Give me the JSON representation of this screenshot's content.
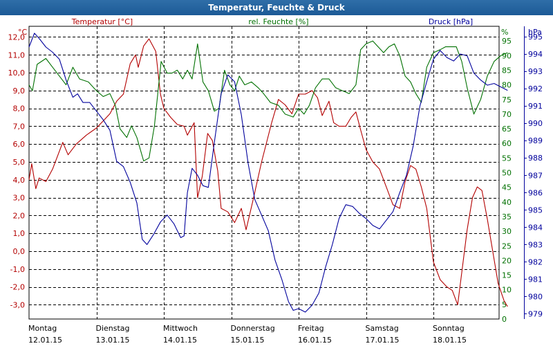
{
  "window": {
    "title": "Temperatur, Feuchte & Druck"
  },
  "chart_data": {
    "type": "line",
    "title": "Temperatur, Feuchte & Druck",
    "x_days": [
      {
        "day": "Montag",
        "date": "12.01.15"
      },
      {
        "day": "Dienstag",
        "date": "13.01.15"
      },
      {
        "day": "Mittwoch",
        "date": "14.01.15"
      },
      {
        "day": "Donnerstag",
        "date": "15.01.15"
      },
      {
        "day": "Freitag",
        "date": "16.01.15"
      },
      {
        "day": "Samstag",
        "date": "17.01.15"
      },
      {
        "day": "Sonntag",
        "date": "18.01.15"
      }
    ],
    "x_range_days": [
      0,
      7
    ],
    "grid": true,
    "axes": {
      "temperature": {
        "label": "Temperatur [°C]",
        "unit": "°C",
        "color": "#b30000",
        "ylim": [
          -3.8,
          12.6
        ],
        "ticks": [
          "12,0",
          "11,0",
          "10,0",
          "9,0",
          "8,0",
          "7,0",
          "6,0",
          "5,0",
          "4,0",
          "3,0",
          "2,0",
          "1,0",
          "0,0",
          "-1,0",
          "-2,0",
          "-3,0"
        ]
      },
      "humidity": {
        "label": "rel. Feuchte [%]",
        "unit": "%",
        "color": "#007000",
        "ylim": [
          0,
          100
        ],
        "ticks": [
          "0",
          "5",
          "10",
          "15",
          "20",
          "25",
          "30",
          "35",
          "40",
          "45",
          "50",
          "55",
          "60",
          "65",
          "70",
          "75",
          "80",
          "85",
          "90",
          "95"
        ]
      },
      "pressure": {
        "label": "Druck [hPa]",
        "unit": "hPa",
        "color": "#00009c",
        "ylim": [
          978.7,
          995.6
        ],
        "ticks": [
          "979",
          "980",
          "981",
          "982",
          "983",
          "984",
          "985",
          "986",
          "987",
          "988",
          "989",
          "990",
          "991",
          "992",
          "993",
          "994",
          "995"
        ]
      }
    },
    "series": [
      {
        "name": "Temperatur",
        "axis": "temperature",
        "color": "#b30000",
        "points": [
          [
            0,
            4
          ],
          [
            0.04,
            4.9
          ],
          [
            0.1,
            3.5
          ],
          [
            0.15,
            4.1
          ],
          [
            0.25,
            3.9
          ],
          [
            0.35,
            4.6
          ],
          [
            0.5,
            6.1
          ],
          [
            0.58,
            5.4
          ],
          [
            0.7,
            6.0
          ],
          [
            0.85,
            6.5
          ],
          [
            1.0,
            6.9
          ],
          [
            1.1,
            7.3
          ],
          [
            1.2,
            7.7
          ],
          [
            1.3,
            8.4
          ],
          [
            1.4,
            8.8
          ],
          [
            1.5,
            10.5
          ],
          [
            1.58,
            11.0
          ],
          [
            1.62,
            10.3
          ],
          [
            1.7,
            11.5
          ],
          [
            1.78,
            11.9
          ],
          [
            1.88,
            11.2
          ],
          [
            1.95,
            8.8
          ],
          [
            2.0,
            8.0
          ],
          [
            2.1,
            7.5
          ],
          [
            2.2,
            7.1
          ],
          [
            2.3,
            7.0
          ],
          [
            2.35,
            6.5
          ],
          [
            2.45,
            7.2
          ],
          [
            2.5,
            3.0
          ],
          [
            2.57,
            4.2
          ],
          [
            2.65,
            6.6
          ],
          [
            2.72,
            6.2
          ],
          [
            2.8,
            4.5
          ],
          [
            2.85,
            2.4
          ],
          [
            2.95,
            2.2
          ],
          [
            3.05,
            1.6
          ],
          [
            3.15,
            2.4
          ],
          [
            3.22,
            1.2
          ],
          [
            3.32,
            2.8
          ],
          [
            3.45,
            5.0
          ],
          [
            3.6,
            7.2
          ],
          [
            3.7,
            8.5
          ],
          [
            3.8,
            8.2
          ],
          [
            3.9,
            7.7
          ],
          [
            4.0,
            8.8
          ],
          [
            4.1,
            8.8
          ],
          [
            4.2,
            9.0
          ],
          [
            4.28,
            8.6
          ],
          [
            4.35,
            7.6
          ],
          [
            4.45,
            8.4
          ],
          [
            4.52,
            7.2
          ],
          [
            4.6,
            7.0
          ],
          [
            4.7,
            7.0
          ],
          [
            4.78,
            7.5
          ],
          [
            4.85,
            7.8
          ],
          [
            4.92,
            6.8
          ],
          [
            5.0,
            5.7
          ],
          [
            5.1,
            5.0
          ],
          [
            5.2,
            4.6
          ],
          [
            5.3,
            3.6
          ],
          [
            5.4,
            2.6
          ],
          [
            5.5,
            2.4
          ],
          [
            5.58,
            3.9
          ],
          [
            5.66,
            4.8
          ],
          [
            5.74,
            4.6
          ],
          [
            5.82,
            3.6
          ],
          [
            5.9,
            2.4
          ],
          [
            6.0,
            -0.6
          ],
          [
            6.1,
            -1.6
          ],
          [
            6.2,
            -2.0
          ],
          [
            6.28,
            -2.2
          ],
          [
            6.36,
            -3.0
          ],
          [
            6.42,
            -1.2
          ],
          [
            6.5,
            1.2
          ],
          [
            6.58,
            3.0
          ],
          [
            6.65,
            3.6
          ],
          [
            6.72,
            3.4
          ],
          [
            6.8,
            1.8
          ],
          [
            6.88,
            0
          ],
          [
            6.96,
            -1.8
          ],
          [
            7.05,
            -2.8
          ],
          [
            7.1,
            -3.1
          ]
        ]
      },
      {
        "name": "rel. Feuchte",
        "axis": "humidity",
        "color": "#007000",
        "points": [
          [
            0,
            80
          ],
          [
            0.05,
            78
          ],
          [
            0.12,
            87
          ],
          [
            0.25,
            89
          ],
          [
            0.35,
            86
          ],
          [
            0.45,
            83
          ],
          [
            0.55,
            80
          ],
          [
            0.65,
            86
          ],
          [
            0.75,
            82
          ],
          [
            0.88,
            81
          ],
          [
            1.0,
            78
          ],
          [
            1.1,
            76
          ],
          [
            1.2,
            77
          ],
          [
            1.28,
            73
          ],
          [
            1.35,
            65
          ],
          [
            1.45,
            62
          ],
          [
            1.52,
            66
          ],
          [
            1.6,
            62
          ],
          [
            1.7,
            54
          ],
          [
            1.78,
            55
          ],
          [
            1.86,
            66
          ],
          [
            1.96,
            88
          ],
          [
            2.05,
            84
          ],
          [
            2.12,
            84
          ],
          [
            2.2,
            85
          ],
          [
            2.28,
            82
          ],
          [
            2.35,
            85
          ],
          [
            2.42,
            82
          ],
          [
            2.5,
            94
          ],
          [
            2.58,
            81
          ],
          [
            2.66,
            78
          ],
          [
            2.75,
            71
          ],
          [
            2.82,
            72
          ],
          [
            2.9,
            85
          ],
          [
            2.98,
            80
          ],
          [
            3.05,
            78
          ],
          [
            3.12,
            83
          ],
          [
            3.2,
            80
          ],
          [
            3.3,
            81
          ],
          [
            3.4,
            79
          ],
          [
            3.48,
            77
          ],
          [
            3.58,
            74
          ],
          [
            3.7,
            73
          ],
          [
            3.8,
            70
          ],
          [
            3.92,
            69
          ],
          [
            4.0,
            72
          ],
          [
            4.08,
            70
          ],
          [
            4.16,
            73
          ],
          [
            4.25,
            79
          ],
          [
            4.35,
            82
          ],
          [
            4.45,
            82
          ],
          [
            4.55,
            79
          ],
          [
            4.65,
            78
          ],
          [
            4.75,
            77
          ],
          [
            4.85,
            80
          ],
          [
            4.92,
            92
          ],
          [
            5.0,
            94
          ],
          [
            5.1,
            95
          ],
          [
            5.18,
            93
          ],
          [
            5.26,
            91
          ],
          [
            5.34,
            93
          ],
          [
            5.42,
            94
          ],
          [
            5.5,
            90
          ],
          [
            5.58,
            83
          ],
          [
            5.66,
            81
          ],
          [
            5.74,
            77
          ],
          [
            5.82,
            74
          ],
          [
            5.9,
            86
          ],
          [
            6.0,
            91
          ],
          [
            6.1,
            92
          ],
          [
            6.18,
            93
          ],
          [
            6.26,
            93
          ],
          [
            6.34,
            93
          ],
          [
            6.42,
            88
          ],
          [
            6.5,
            79
          ],
          [
            6.6,
            70
          ],
          [
            6.7,
            75
          ],
          [
            6.8,
            83
          ],
          [
            6.9,
            88
          ],
          [
            7.0,
            90
          ],
          [
            7.1,
            91
          ]
        ]
      },
      {
        "name": "Druck",
        "axis": "pressure",
        "color": "#00009c",
        "points": [
          [
            0,
            994.4
          ],
          [
            0.08,
            995.2
          ],
          [
            0.15,
            994.9
          ],
          [
            0.25,
            994.4
          ],
          [
            0.35,
            994.1
          ],
          [
            0.45,
            993.7
          ],
          [
            0.55,
            992.5
          ],
          [
            0.65,
            991.5
          ],
          [
            0.72,
            991.7
          ],
          [
            0.8,
            991.2
          ],
          [
            0.9,
            991.2
          ],
          [
            1.0,
            990.7
          ],
          [
            1.1,
            990.2
          ],
          [
            1.2,
            989.6
          ],
          [
            1.3,
            987.8
          ],
          [
            1.4,
            987.5
          ],
          [
            1.5,
            986.6
          ],
          [
            1.6,
            985.4
          ],
          [
            1.68,
            983.3
          ],
          [
            1.75,
            983.0
          ],
          [
            1.85,
            983.6
          ],
          [
            1.95,
            984.3
          ],
          [
            2.05,
            984.7
          ],
          [
            2.15,
            984.2
          ],
          [
            2.25,
            983.4
          ],
          [
            2.3,
            983.5
          ],
          [
            2.35,
            986.0
          ],
          [
            2.42,
            987.4
          ],
          [
            2.5,
            987.0
          ],
          [
            2.58,
            986.4
          ],
          [
            2.66,
            986.3
          ],
          [
            2.75,
            988.9
          ],
          [
            2.85,
            991.7
          ],
          [
            2.95,
            992.8
          ],
          [
            3.05,
            992.4
          ],
          [
            3.15,
            990.5
          ],
          [
            3.25,
            987.7
          ],
          [
            3.35,
            985.6
          ],
          [
            3.45,
            984.7
          ],
          [
            3.55,
            983.8
          ],
          [
            3.65,
            982.1
          ],
          [
            3.75,
            981.0
          ],
          [
            3.85,
            979.7
          ],
          [
            3.92,
            979.2
          ],
          [
            4.0,
            979.3
          ],
          [
            4.1,
            979.1
          ],
          [
            4.2,
            979.5
          ],
          [
            4.3,
            980.2
          ],
          [
            4.4,
            981.7
          ],
          [
            4.5,
            983.0
          ],
          [
            4.6,
            984.5
          ],
          [
            4.7,
            985.3
          ],
          [
            4.8,
            985.2
          ],
          [
            4.9,
            984.8
          ],
          [
            5.0,
            984.5
          ],
          [
            5.1,
            984.1
          ],
          [
            5.2,
            983.9
          ],
          [
            5.3,
            984.4
          ],
          [
            5.4,
            984.9
          ],
          [
            5.5,
            986.0
          ],
          [
            5.6,
            987.0
          ],
          [
            5.7,
            988.7
          ],
          [
            5.8,
            991.0
          ],
          [
            5.9,
            992.4
          ],
          [
            6.0,
            993.7
          ],
          [
            6.1,
            994.2
          ],
          [
            6.2,
            993.8
          ],
          [
            6.3,
            993.6
          ],
          [
            6.4,
            994.0
          ],
          [
            6.5,
            993.9
          ],
          [
            6.6,
            992.9
          ],
          [
            6.7,
            992.5
          ],
          [
            6.8,
            992.2
          ],
          [
            6.9,
            992.3
          ],
          [
            7.0,
            992.1
          ],
          [
            7.1,
            991.9
          ]
        ]
      }
    ]
  }
}
